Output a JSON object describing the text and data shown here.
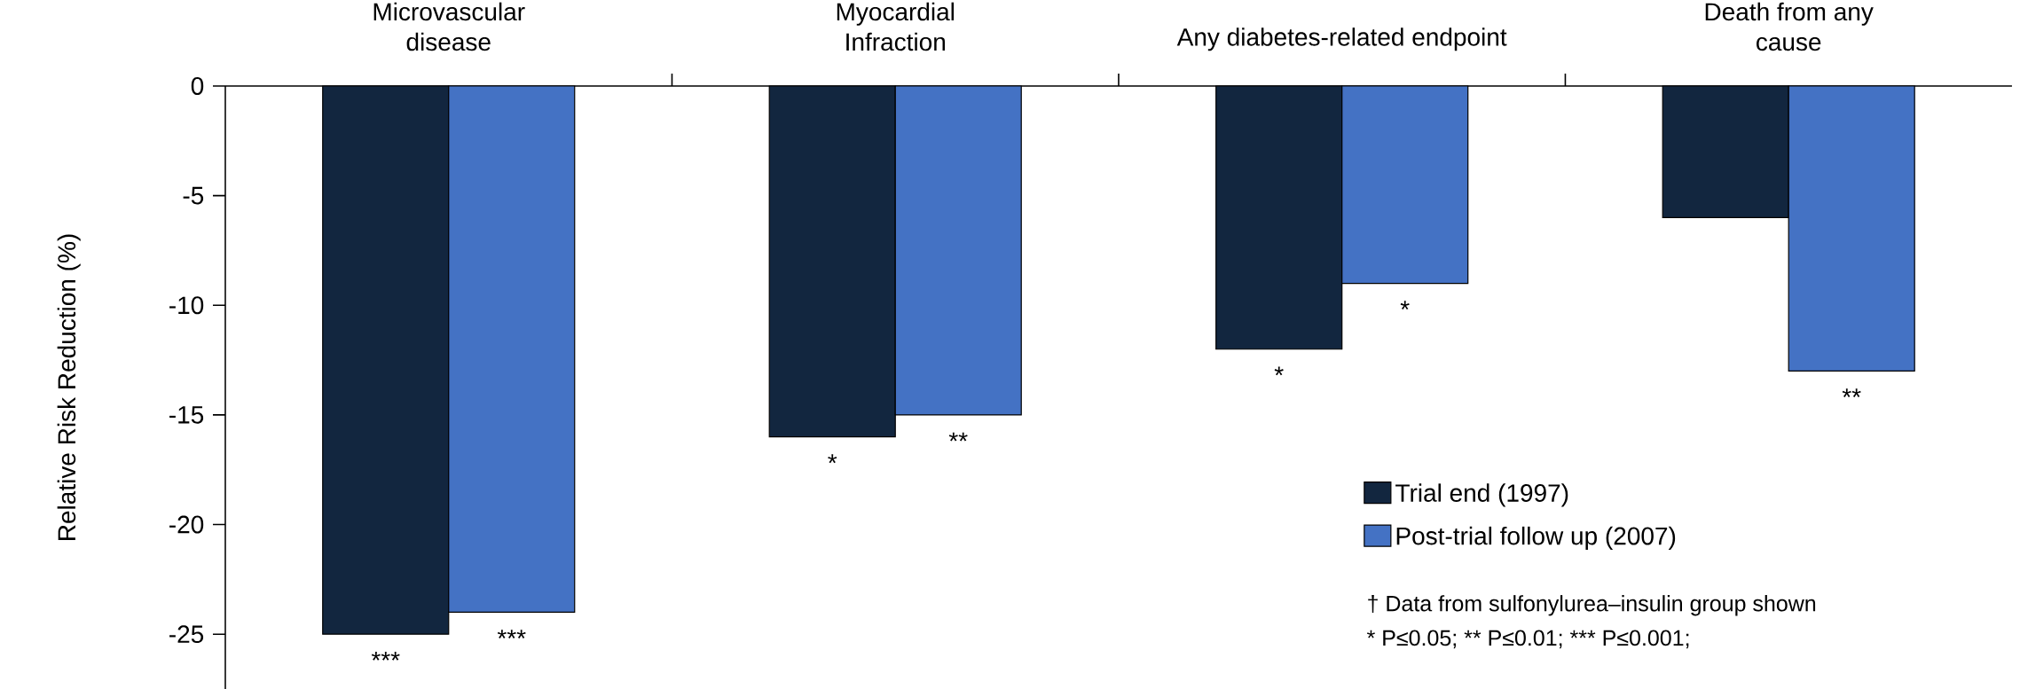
{
  "chart_data": {
    "type": "bar",
    "ylabel": "Relative Risk Reduction (%)",
    "categories": [
      "Microvascular disease",
      "Myocardial Infraction",
      "Any diabetes-related endpoint",
      "Death from any cause"
    ],
    "series": [
      {
        "name": "Trial end (1997)",
        "color": "#12263f",
        "values": [
          -25,
          -16,
          -12,
          -6
        ]
      },
      {
        "name": "Post-trial follow up (2007)",
        "color": "#4472c4",
        "values": [
          -24,
          -15,
          -9,
          -13
        ]
      }
    ],
    "ylim": [
      -27.5,
      0
    ],
    "yticks": [
      -25,
      -20,
      -15,
      -10,
      -5,
      0
    ],
    "legend": "right",
    "annotations": [
      {
        "text": "***",
        "x": "Microvascular disease",
        "y": -25
      },
      {
        "text": "***",
        "x": "Microvascular disease",
        "y": -24
      },
      {
        "text": "*",
        "x": "Myocardial Infraction",
        "y": -16
      },
      {
        "text": "**",
        "x": "Myocardial Infraction",
        "y": -15
      },
      {
        "text": "*",
        "x": "Any diabetes-related endpoint",
        "y": -12
      },
      {
        "text": "*",
        "x": "Any diabetes-related endpoint",
        "y": -9
      },
      {
        "text": "**",
        "x": "Death from any cause",
        "y": -13
      },
      "† Data from sulfonylurea–insulin group shown",
      "* P≤0.05; ** P≤0.01; *** P≤0.001;"
    ]
  }
}
